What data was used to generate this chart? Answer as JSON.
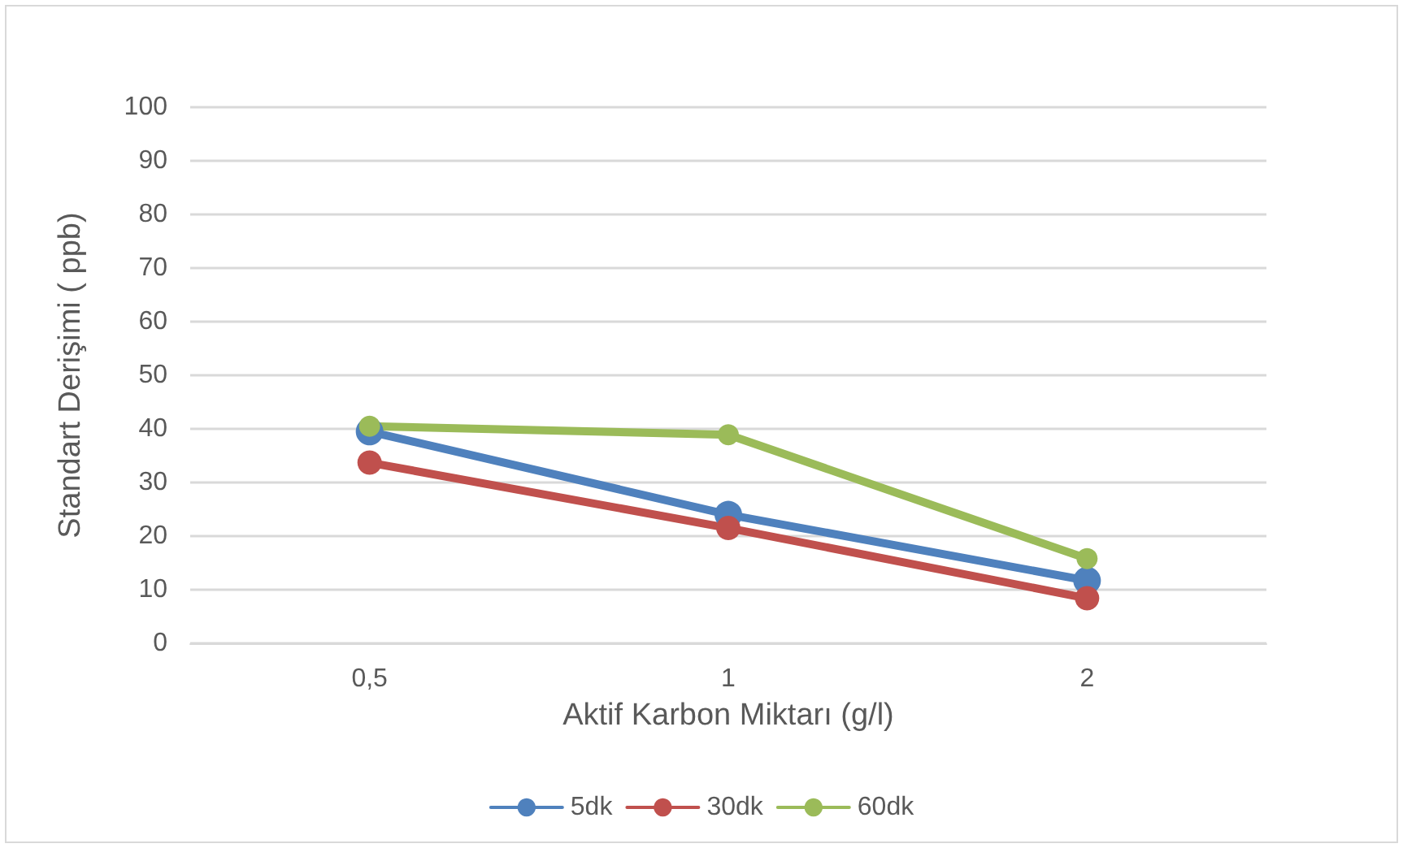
{
  "chart_data": {
    "type": "line",
    "xlabel": "Aktif Karbon Miktarı (g/l)",
    "ylabel": "Standart Derişimi ( ppb)",
    "categories": [
      "0,5",
      "1",
      "2"
    ],
    "series": [
      {
        "name": "5dk",
        "color": "#4f81bd",
        "values": [
          39.5,
          24,
          11.7
        ]
      },
      {
        "name": "30dk",
        "color": "#c0504d",
        "values": [
          33.7,
          21.5,
          8.4
        ]
      },
      {
        "name": "60dk",
        "color": "#9bbb59",
        "values": [
          40.5,
          38.9,
          15.8
        ]
      }
    ],
    "ylim": [
      0,
      100
    ],
    "yticks": [
      0,
      10,
      20,
      30,
      40,
      50,
      60,
      70,
      80,
      90,
      100
    ],
    "grid": "y",
    "legend": "bottom",
    "marker": "circle",
    "line_style": "solid"
  }
}
